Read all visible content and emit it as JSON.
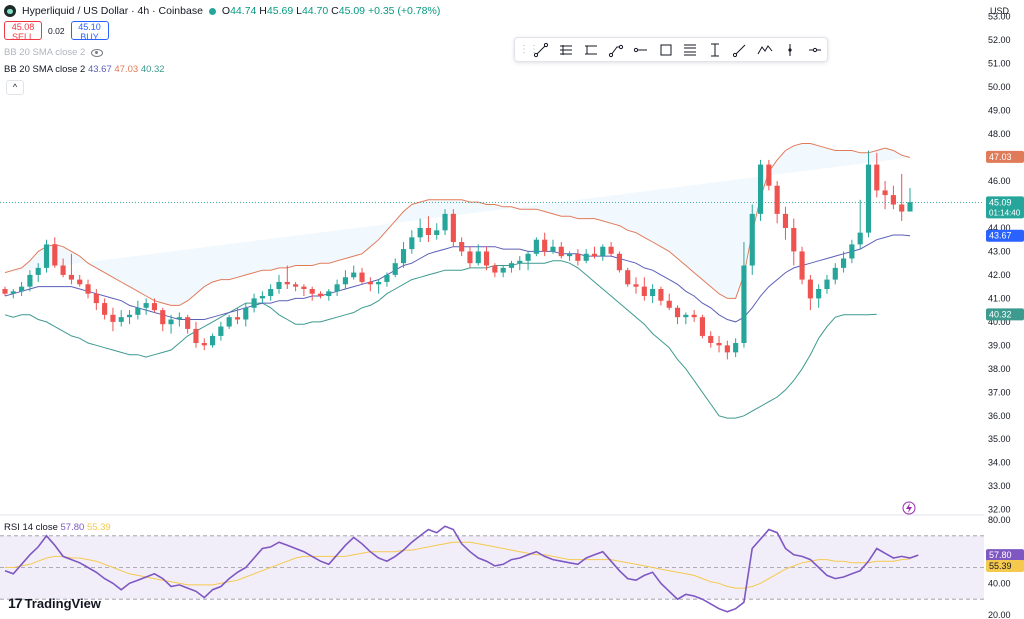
{
  "header": {
    "symbol": "Hyperliquid / US Dollar · 4h · Coinbase",
    "o_label": "O",
    "o": "44.74",
    "h_label": "H",
    "h": "45.69",
    "l_label": "L",
    "l": "44.70",
    "c_label": "C",
    "c": "45.09",
    "change": "+0.35 (+0.78%)"
  },
  "trade": {
    "sell_price": "45.08",
    "sell_label": "SELL",
    "spread": "0.02",
    "buy_price": "45.10",
    "buy_label": "BUY"
  },
  "indicators": {
    "bb_hidden": "BB 20 SMA close 2",
    "bb_label": "BB 20 SMA close 2",
    "bb_basis": "43.67",
    "bb_upper": "47.03",
    "bb_lower": "40.32",
    "collapse_glyph": "^"
  },
  "rsi": {
    "label": "RSI 14 close",
    "value": "57.80",
    "ma": "55.39"
  },
  "axis": {
    "currency": "USD",
    "countdown": "01:14:40"
  },
  "logo": {
    "text": "TradingView"
  },
  "toolbar": {
    "grip": "⋮⋮",
    "icons": [
      "trendline-icon",
      "fib-icon",
      "pitchfork-icon",
      "path-icon",
      "horizontal-ray-icon",
      "rectangle-icon",
      "channel-icon",
      "projection-icon",
      "ruler-icon",
      "line-icon",
      "zigzag-icon",
      "vertical-line-icon",
      "horizontal-line-icon"
    ]
  },
  "colors": {
    "up": "#26a69a",
    "down": "#ef5350",
    "basis": "#5b5fb8",
    "upper": "#e07b5a",
    "lower": "#3d9a8f",
    "rsi": "#7e57c2",
    "rsi_ma": "#f5c94e"
  },
  "chart_data": {
    "type": "candlestick",
    "y_ticks": [
      "53.00",
      "52.00",
      "51.00",
      "50.00",
      "49.00",
      "48.00",
      "47.00",
      "46.00",
      "45.00",
      "44.00",
      "43.00",
      "42.00",
      "41.00",
      "40.00",
      "39.00",
      "38.00",
      "37.00",
      "36.00",
      "35.00",
      "34.00",
      "33.00",
      "32.00"
    ],
    "ylim": [
      31.9,
      53.2
    ],
    "last_price": 45.09,
    "candles": [
      [
        41.4,
        41.5,
        41.1,
        41.2
      ],
      [
        41.2,
        41.4,
        41.0,
        41.3
      ],
      [
        41.3,
        41.7,
        41.1,
        41.5
      ],
      [
        41.5,
        42.2,
        41.3,
        42.0
      ],
      [
        42.0,
        42.5,
        41.7,
        42.3
      ],
      [
        42.3,
        43.5,
        42.1,
        43.3
      ],
      [
        43.3,
        43.6,
        42.3,
        42.4
      ],
      [
        42.4,
        42.7,
        41.9,
        42.0
      ],
      [
        42.0,
        42.9,
        41.6,
        41.8
      ],
      [
        41.8,
        42.0,
        41.5,
        41.6
      ],
      [
        41.6,
        41.8,
        41.0,
        41.2
      ],
      [
        41.2,
        41.4,
        40.5,
        40.8
      ],
      [
        40.8,
        41.0,
        40.1,
        40.3
      ],
      [
        40.3,
        40.6,
        39.6,
        40.0
      ],
      [
        40.0,
        40.5,
        39.8,
        40.2
      ],
      [
        40.2,
        40.5,
        39.9,
        40.3
      ],
      [
        40.3,
        40.9,
        40.1,
        40.6
      ],
      [
        40.6,
        41.0,
        40.3,
        40.8
      ],
      [
        40.8,
        41.0,
        40.4,
        40.5
      ],
      [
        40.5,
        40.6,
        39.6,
        39.9
      ],
      [
        39.9,
        40.3,
        39.5,
        40.1
      ],
      [
        40.1,
        40.4,
        39.8,
        40.2
      ],
      [
        40.2,
        40.3,
        39.5,
        39.7
      ],
      [
        39.7,
        40.0,
        38.9,
        39.1
      ],
      [
        39.1,
        39.3,
        38.8,
        39.0
      ],
      [
        39.0,
        39.5,
        38.9,
        39.4
      ],
      [
        39.4,
        40.0,
        39.2,
        39.8
      ],
      [
        39.8,
        40.3,
        39.7,
        40.2
      ],
      [
        40.2,
        40.6,
        39.9,
        40.1
      ],
      [
        40.1,
        40.8,
        39.8,
        40.6
      ],
      [
        40.6,
        41.2,
        40.4,
        41.0
      ],
      [
        41.0,
        41.3,
        40.8,
        41.1
      ],
      [
        41.1,
        41.6,
        40.9,
        41.4
      ],
      [
        41.4,
        42.0,
        41.2,
        41.7
      ],
      [
        41.7,
        42.4,
        41.4,
        41.6
      ],
      [
        41.6,
        41.7,
        41.3,
        41.5
      ],
      [
        41.5,
        41.6,
        41.1,
        41.4
      ],
      [
        41.4,
        41.5,
        40.9,
        41.2
      ],
      [
        41.2,
        41.3,
        41.0,
        41.1
      ],
      [
        41.1,
        41.4,
        40.9,
        41.3
      ],
      [
        41.3,
        41.8,
        41.1,
        41.6
      ],
      [
        41.6,
        42.2,
        41.4,
        41.9
      ],
      [
        41.9,
        42.4,
        41.8,
        42.1
      ],
      [
        42.1,
        42.3,
        41.6,
        41.7
      ],
      [
        41.7,
        41.9,
        41.3,
        41.6
      ],
      [
        41.6,
        41.8,
        41.2,
        41.7
      ],
      [
        41.7,
        42.1,
        41.5,
        42.0
      ],
      [
        42.0,
        42.7,
        41.9,
        42.5
      ],
      [
        42.5,
        43.4,
        42.3,
        43.1
      ],
      [
        43.1,
        43.9,
        42.9,
        43.6
      ],
      [
        43.6,
        44.4,
        43.4,
        44.0
      ],
      [
        44.0,
        44.5,
        43.4,
        43.7
      ],
      [
        43.7,
        44.2,
        43.5,
        43.9
      ],
      [
        43.9,
        44.8,
        43.7,
        44.6
      ],
      [
        44.6,
        44.8,
        43.2,
        43.4
      ],
      [
        43.4,
        43.6,
        42.8,
        43.0
      ],
      [
        43.0,
        43.2,
        42.3,
        42.5
      ],
      [
        42.5,
        43.3,
        42.4,
        43.0
      ],
      [
        43.0,
        43.2,
        42.2,
        42.4
      ],
      [
        42.4,
        42.5,
        41.9,
        42.1
      ],
      [
        42.1,
        42.4,
        41.9,
        42.3
      ],
      [
        42.3,
        42.6,
        42.1,
        42.5
      ],
      [
        42.5,
        42.8,
        42.2,
        42.6
      ],
      [
        42.6,
        43.0,
        42.2,
        42.9
      ],
      [
        42.9,
        43.6,
        42.8,
        43.5
      ],
      [
        43.5,
        43.8,
        42.8,
        43.0
      ],
      [
        43.0,
        43.5,
        42.9,
        43.2
      ],
      [
        43.2,
        43.4,
        42.7,
        42.8
      ],
      [
        42.8,
        43.0,
        42.6,
        42.9
      ],
      [
        42.9,
        43.1,
        42.4,
        42.6
      ],
      [
        42.6,
        43.1,
        42.5,
        42.9
      ],
      [
        42.9,
        43.2,
        42.7,
        42.8
      ],
      [
        42.8,
        43.3,
        42.6,
        43.2
      ],
      [
        43.2,
        43.4,
        42.8,
        42.9
      ],
      [
        42.9,
        43.0,
        42.1,
        42.2
      ],
      [
        42.2,
        42.3,
        41.5,
        41.6
      ],
      [
        41.6,
        41.9,
        41.2,
        41.5
      ],
      [
        41.5,
        41.9,
        40.9,
        41.1
      ],
      [
        41.1,
        41.6,
        40.8,
        41.4
      ],
      [
        41.4,
        41.5,
        40.7,
        40.9
      ],
      [
        40.9,
        41.2,
        40.5,
        40.6
      ],
      [
        40.6,
        40.7,
        39.9,
        40.2
      ],
      [
        40.2,
        40.4,
        39.9,
        40.3
      ],
      [
        40.3,
        40.5,
        40.0,
        40.2
      ],
      [
        40.2,
        40.3,
        39.3,
        39.4
      ],
      [
        39.4,
        39.6,
        38.9,
        39.1
      ],
      [
        39.1,
        39.4,
        38.7,
        39.0
      ],
      [
        39.0,
        39.2,
        38.4,
        38.7
      ],
      [
        38.7,
        39.3,
        38.5,
        39.1
      ],
      [
        39.1,
        43.4,
        38.9,
        42.4
      ],
      [
        42.4,
        45.0,
        42.0,
        44.6
      ],
      [
        44.6,
        46.9,
        44.3,
        46.7
      ],
      [
        46.7,
        46.9,
        45.6,
        45.8
      ],
      [
        45.8,
        46.0,
        44.2,
        44.6
      ],
      [
        44.6,
        44.9,
        43.5,
        44.0
      ],
      [
        44.0,
        44.4,
        42.4,
        43.0
      ],
      [
        43.0,
        43.2,
        41.6,
        41.8
      ],
      [
        41.8,
        42.0,
        40.5,
        41.0
      ],
      [
        41.0,
        41.6,
        40.6,
        41.4
      ],
      [
        41.4,
        42.0,
        41.2,
        41.8
      ],
      [
        41.8,
        42.5,
        41.6,
        42.3
      ],
      [
        42.3,
        43.0,
        42.1,
        42.7
      ],
      [
        42.7,
        43.5,
        42.5,
        43.3
      ],
      [
        43.3,
        45.2,
        43.1,
        43.8
      ],
      [
        43.8,
        47.3,
        43.6,
        46.7
      ],
      [
        46.7,
        47.2,
        45.3,
        45.6
      ],
      [
        45.6,
        46.0,
        44.8,
        45.4
      ],
      [
        45.4,
        45.8,
        44.8,
        45.0
      ],
      [
        45.0,
        46.3,
        44.3,
        44.7
      ],
      [
        44.7,
        45.7,
        44.7,
        45.1
      ]
    ],
    "bb_upper": [
      42.1,
      42.2,
      42.3,
      42.6,
      43.0,
      43.2,
      43.3,
      43.2,
      43.0,
      42.8,
      42.5,
      42.3,
      42.1,
      41.9,
      41.7,
      41.5,
      41.3,
      41.1,
      40.9,
      40.8,
      40.7,
      40.7,
      40.9,
      41.2,
      41.5,
      41.7,
      41.8,
      41.8,
      41.9,
      42.0,
      42.1,
      42.2,
      42.2,
      42.3,
      42.3,
      42.4,
      42.4,
      42.4,
      42.5,
      42.5,
      42.6,
      42.7,
      42.8,
      42.9,
      43.2,
      43.5,
      43.9,
      44.3,
      44.7,
      45.0,
      45.1,
      45.2,
      45.2,
      45.2,
      45.2,
      45.2,
      45.1,
      45.1,
      45.0,
      45.0,
      44.9,
      44.9,
      44.8,
      44.8,
      44.8,
      44.7,
      44.6,
      44.5,
      44.5,
      44.4,
      44.4,
      44.4,
      44.3,
      44.2,
      44.1,
      43.9,
      43.8,
      43.6,
      43.4,
      43.2,
      43.0,
      42.7,
      42.4,
      42.1,
      41.8,
      41.5,
      41.2,
      41.0,
      41.0,
      42.0,
      43.8,
      45.3,
      46.4,
      46.9,
      47.3,
      47.5,
      47.6,
      47.6,
      47.5,
      47.4,
      47.3,
      47.3,
      47.3,
      47.2,
      47.2,
      47.3,
      47.4,
      47.3,
      47.1,
      47.0
    ],
    "bb_basis": [
      41.1,
      41.2,
      41.3,
      41.4,
      41.5,
      41.5,
      41.5,
      41.5,
      41.5,
      41.4,
      41.3,
      41.2,
      41.1,
      41.0,
      40.9,
      40.7,
      40.6,
      40.5,
      40.4,
      40.3,
      40.2,
      40.1,
      40.1,
      40.1,
      40.1,
      40.2,
      40.3,
      40.4,
      40.5,
      40.6,
      40.7,
      40.8,
      40.8,
      40.9,
      40.9,
      41.0,
      41.0,
      41.1,
      41.1,
      41.2,
      41.3,
      41.4,
      41.5,
      41.6,
      41.7,
      41.8,
      42.0,
      42.2,
      42.4,
      42.5,
      42.7,
      42.9,
      43.0,
      43.1,
      43.2,
      43.2,
      43.2,
      43.2,
      43.2,
      43.2,
      43.1,
      43.1,
      43.1,
      43.0,
      43.0,
      43.0,
      43.0,
      42.9,
      42.9,
      42.9,
      42.8,
      42.8,
      42.8,
      42.8,
      42.7,
      42.6,
      42.5,
      42.3,
      42.2,
      42.0,
      41.8,
      41.6,
      41.3,
      41.1,
      40.8,
      40.6,
      40.3,
      40.1,
      40.0,
      40.2,
      40.6,
      41.1,
      41.5,
      41.8,
      42.1,
      42.3,
      42.4,
      42.5,
      42.6,
      42.7,
      42.8,
      42.9,
      43.0,
      43.1,
      43.3,
      43.5,
      43.6,
      43.7,
      43.7,
      43.67
    ],
    "bb_lower": [
      40.3,
      40.2,
      40.3,
      40.3,
      40.1,
      40.0,
      39.8,
      39.6,
      39.4,
      39.3,
      39.1,
      39.0,
      38.9,
      38.8,
      38.7,
      38.6,
      38.6,
      38.5,
      38.6,
      38.7,
      38.8,
      39.1,
      39.4,
      39.6,
      39.8,
      40.0,
      40.2,
      40.4,
      40.6,
      40.8,
      40.8,
      40.8,
      40.6,
      40.3,
      40.1,
      39.9,
      39.9,
      40.0,
      40.0,
      40.1,
      40.2,
      40.3,
      40.4,
      40.6,
      40.7,
      40.9,
      41.2,
      41.4,
      41.6,
      41.8,
      41.9,
      42.0,
      42.1,
      42.2,
      42.2,
      42.2,
      42.3,
      42.3,
      42.3,
      42.4,
      42.4,
      42.4,
      42.5,
      42.5,
      42.5,
      42.5,
      42.6,
      42.6,
      42.5,
      42.3,
      42.0,
      41.7,
      41.4,
      41.1,
      40.8,
      40.5,
      40.2,
      39.9,
      39.5,
      39.2,
      38.9,
      38.4,
      38.0,
      37.5,
      37.0,
      36.5,
      36.0,
      35.9,
      35.9,
      36.0,
      36.2,
      36.4,
      36.6,
      36.8,
      37.1,
      37.5,
      38.0,
      38.6,
      39.3,
      39.8,
      40.2,
      40.3,
      40.3,
      40.3,
      40.3,
      40.32
    ],
    "rsi_ylim": [
      20,
      80
    ],
    "rsi_levels": [
      70,
      50,
      30
    ],
    "rsi_ticks": [
      "80.00",
      "40.00",
      "20.00"
    ],
    "rsi": [
      48,
      46,
      52,
      58,
      63,
      70,
      64,
      57,
      55,
      53,
      50,
      47,
      43,
      40,
      36,
      40,
      42,
      44,
      46,
      43,
      38,
      39,
      37,
      35,
      31,
      36,
      38,
      43,
      47,
      50,
      56,
      62,
      63,
      66,
      64,
      62,
      60,
      57,
      54,
      52,
      58,
      64,
      69,
      65,
      60,
      56,
      54,
      57,
      61,
      66,
      70,
      74,
      72,
      76,
      74,
      65,
      60,
      56,
      54,
      51,
      52,
      55,
      56,
      58,
      60,
      57,
      55,
      54,
      53,
      52,
      56,
      58,
      60,
      54,
      48,
      43,
      42,
      45,
      47,
      40,
      35,
      30,
      33,
      32,
      30,
      27,
      24,
      22,
      24,
      28,
      62,
      68,
      74,
      72,
      62,
      58,
      57,
      55,
      50,
      45,
      43,
      44,
      46,
      48,
      54,
      62,
      59,
      56,
      57,
      56,
      57.8
    ],
    "rsi_ma": [
      50,
      50,
      51,
      52,
      54,
      56,
      57,
      57,
      56,
      56,
      55,
      54,
      52,
      50,
      48,
      46,
      45,
      44,
      43,
      42,
      41,
      40,
      39,
      39,
      39,
      39,
      40,
      41,
      42,
      44,
      46,
      48,
      50,
      52,
      54,
      56,
      57,
      57,
      57,
      57,
      57,
      57,
      58,
      59,
      60,
      60,
      60,
      60,
      61,
      61,
      62,
      63,
      64,
      65,
      66,
      66,
      66,
      65,
      64,
      63,
      62,
      61,
      60,
      59,
      58,
      58,
      57,
      56,
      55,
      55,
      55,
      55,
      55,
      55,
      54,
      53,
      52,
      51,
      50,
      49,
      48,
      47,
      46,
      45,
      43,
      41,
      40,
      38,
      37,
      37,
      38,
      40,
      43,
      46,
      49,
      51,
      53,
      54,
      55,
      55,
      54,
      54,
      53,
      53,
      53,
      54,
      54,
      54,
      55,
      55.39
    ]
  }
}
